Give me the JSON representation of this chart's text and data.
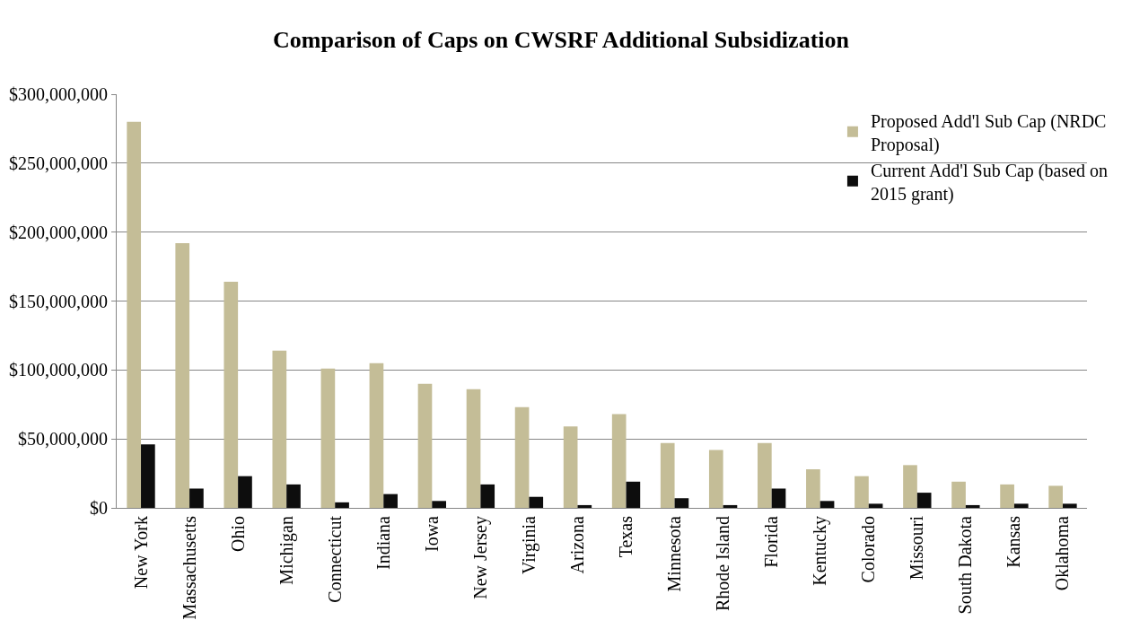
{
  "chart_data": {
    "type": "bar",
    "title": "Comparison of Caps on CWSRF Additional Subsidization",
    "categories": [
      "New York",
      "Massachusetts",
      "Ohio",
      "Michigan",
      "Connecticut",
      "Indiana",
      "Iowa",
      "New Jersey",
      "Virginia",
      "Arizona",
      "Texas",
      "Minnesota",
      "Rhode Island",
      "Florida",
      "Kentucky",
      "Colorado",
      "Missouri",
      "South Dakota",
      "Kansas",
      "Oklahoma"
    ],
    "series": [
      {
        "name": "Proposed Add'l Sub Cap (NRDC Proposal)",
        "color": "#c4bd97",
        "values": [
          280000000,
          192000000,
          164000000,
          114000000,
          101000000,
          105000000,
          90000000,
          86000000,
          73000000,
          59000000,
          68000000,
          47000000,
          42000000,
          47000000,
          28000000,
          23000000,
          31000000,
          19000000,
          17000000,
          16000000
        ]
      },
      {
        "name": "Current Add'l Sub Cap (based on 2015 grant)",
        "color": "#0d0d0d",
        "values": [
          46000000,
          14000000,
          23000000,
          17000000,
          4000000,
          10000000,
          5000000,
          17000000,
          8000000,
          2000000,
          19000000,
          7000000,
          2000000,
          14000000,
          5000000,
          3000000,
          11000000,
          2000000,
          3000000,
          3000000
        ]
      }
    ],
    "ylim": [
      0,
      300000000
    ],
    "yticks": [
      {
        "value": 0,
        "label": "$0"
      },
      {
        "value": 50000000,
        "label": "$50,000,000"
      },
      {
        "value": 100000000,
        "label": "$100,000,000"
      },
      {
        "value": 150000000,
        "label": "$150,000,000"
      },
      {
        "value": 200000000,
        "label": "$200,000,000"
      },
      {
        "value": 250000000,
        "label": "$250,000,000"
      },
      {
        "value": 300000000,
        "label": "$300,000,000"
      }
    ],
    "grid": "y",
    "legend": "top right"
  }
}
